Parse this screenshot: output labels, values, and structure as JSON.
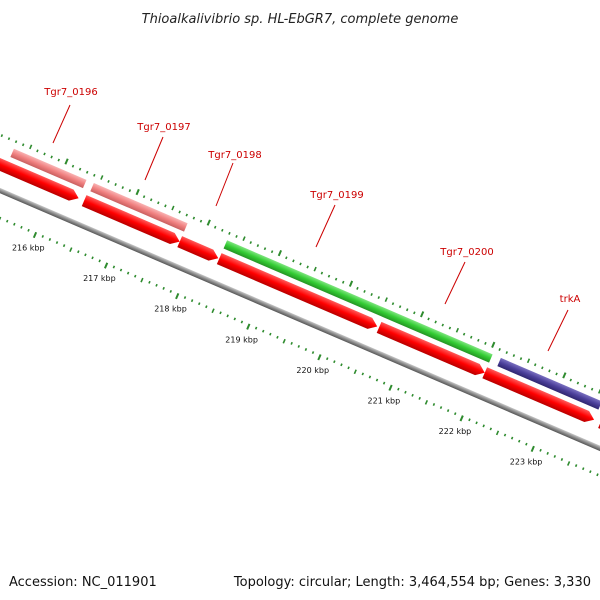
{
  "title": "Thioalkalivibrio sp. HL-EbGR7, complete genome",
  "footer": {
    "accession": "Accession: NC_011901",
    "topology": "Topology: circular; Length: 3,464,554 bp; Genes: 3,330"
  },
  "colors": {
    "cds": "#ff0000",
    "gene_pink": "#f08080",
    "gene_green": "#33cc33",
    "gene_purple": "#4b3f9a",
    "backbone": "#808080",
    "ticks": "#2e8b2e",
    "labels": "#cc0000"
  },
  "tick_labels": [
    "216 kbp",
    "217 kbp",
    "218 kbp",
    "219 kbp",
    "220 kbp",
    "221 kbp",
    "222 kbp",
    "223 kbp"
  ],
  "genes": [
    {
      "name": "Tgr7_0196",
      "color": "gene_pink"
    },
    {
      "name": "Tgr7_0197",
      "color": "gene_pink"
    },
    {
      "name": "Tgr7_0198",
      "color": "cds"
    },
    {
      "name": "Tgr7_0199",
      "color": "gene_green"
    },
    {
      "name": "Tgr7_0200",
      "color": "gene_green"
    },
    {
      "name": "trkA",
      "color": "gene_purple"
    }
  ]
}
